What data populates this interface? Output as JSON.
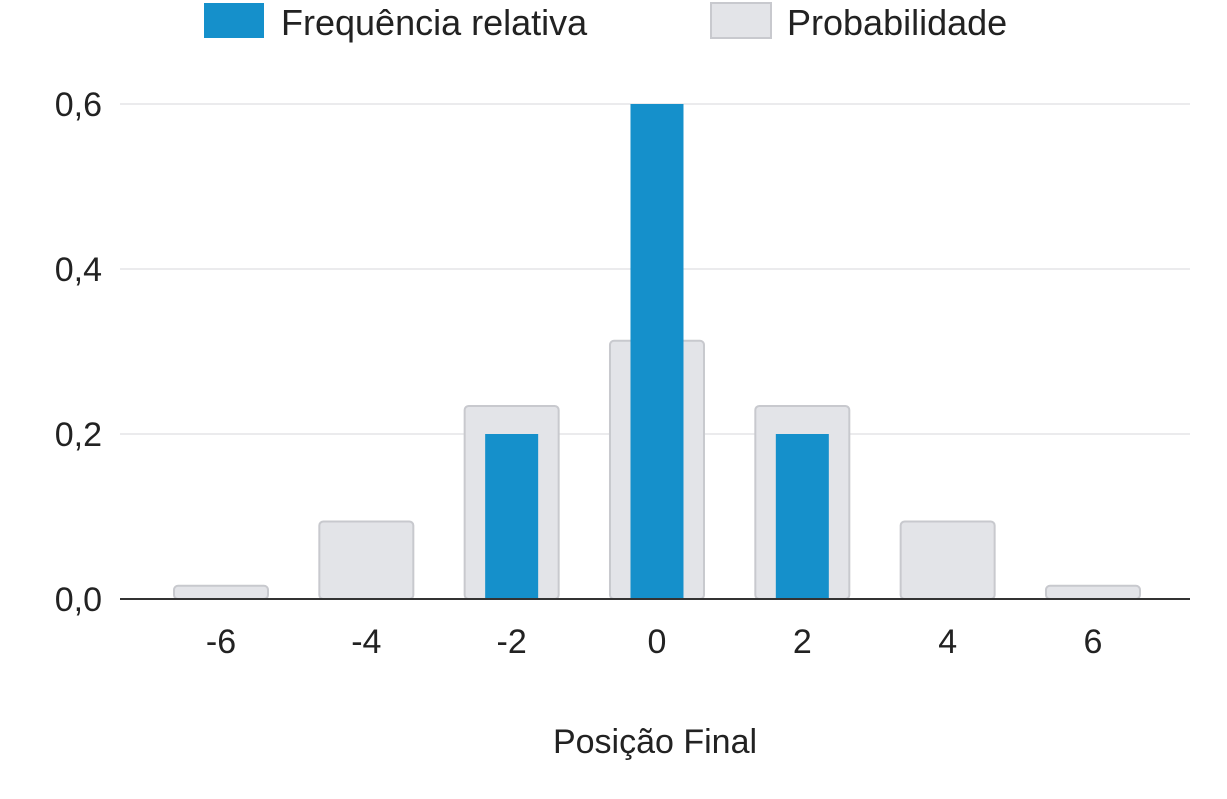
{
  "chart_data": {
    "type": "bar",
    "xlabel": "Posição Final",
    "ylabel": "",
    "ylim": [
      0,
      0.6
    ],
    "yticks": [
      0.0,
      0.2,
      0.4,
      0.6
    ],
    "ytick_labels": [
      "0,0",
      "0,2",
      "0,4",
      "0,6"
    ],
    "categories": [
      "-6",
      "-4",
      "-2",
      "0",
      "2",
      "4",
      "6"
    ],
    "grid": true,
    "legend_position": "top-center",
    "series": [
      {
        "name": "Frequência relativa",
        "color": "#1590cb",
        "values": [
          0,
          0,
          0.2,
          0.6,
          0.2,
          0,
          0
        ]
      },
      {
        "name": "Probabilidade",
        "color": "#e3e4e8",
        "values": [
          0.016,
          0.094,
          0.234,
          0.313,
          0.234,
          0.094,
          0.016
        ]
      }
    ]
  }
}
